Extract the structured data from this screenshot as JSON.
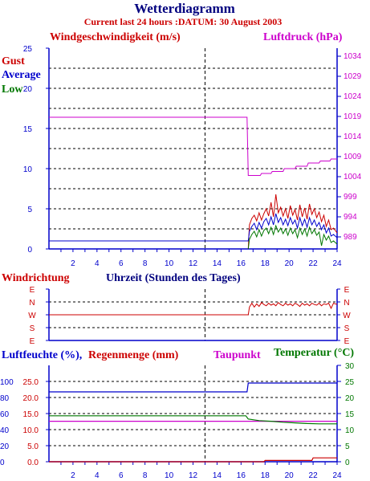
{
  "page": {
    "title": "Wetterdiagramm",
    "subtitle": "Current last 24 hours :DATUM: 30 August 2003"
  },
  "colors": {
    "title": "#00007f",
    "subtitle": "#cc0000",
    "gust": "#cc0000",
    "average": "#0000cc",
    "low": "#007700",
    "pressure": "#cc00cc",
    "axis": "#0000cc",
    "grid": "#000000",
    "humidity": "#0000cc",
    "rain": "#cc0000",
    "dewpoint": "#cc00cc",
    "temperature": "#007700"
  },
  "chart_data": [
    {
      "type": "line",
      "panel": "wind",
      "xlim": [
        0,
        24
      ],
      "x_ticks": [
        "2",
        "4",
        "6",
        "8",
        "10",
        "12",
        "14",
        "16",
        "18",
        "20",
        "22",
        "24"
      ],
      "left_axis": {
        "label": "Windgeschwindigkeit (m/s)",
        "ylim": [
          0,
          25
        ],
        "ticks": [
          "0",
          "5",
          "10",
          "15",
          "20",
          "25"
        ]
      },
      "right_axis": {
        "label": "Luftdruck (hPa)",
        "ylim": [
          986,
          1036
        ],
        "ticks": [
          "989",
          "994",
          "999",
          "1004",
          "1009",
          "1014",
          "1019",
          "1024",
          "1029",
          "1034"
        ]
      },
      "legend": [
        "Gust",
        "Average",
        "Low"
      ],
      "series": [
        {
          "name": "Gust",
          "axis": "left",
          "points": [
            [
              16.6,
              0
            ],
            [
              16.7,
              3
            ],
            [
              16.9,
              3.8
            ],
            [
              17.1,
              4.2
            ],
            [
              17.3,
              3.5
            ],
            [
              17.5,
              4.5
            ],
            [
              17.7,
              3.6
            ],
            [
              17.9,
              4.4
            ],
            [
              18.1,
              5.0
            ],
            [
              18.3,
              4.1
            ],
            [
              18.5,
              5.8
            ],
            [
              18.7,
              4.0
            ],
            [
              18.9,
              6.8
            ],
            [
              19.1,
              4.5
            ],
            [
              19.3,
              5.2
            ],
            [
              19.5,
              4.1
            ],
            [
              19.7,
              5.0
            ],
            [
              19.9,
              3.8
            ],
            [
              20.1,
              5.4
            ],
            [
              20.3,
              4.2
            ],
            [
              20.5,
              4.9
            ],
            [
              20.7,
              3.6
            ],
            [
              20.9,
              5.5
            ],
            [
              21.1,
              4.0
            ],
            [
              21.3,
              5.1
            ],
            [
              21.5,
              3.7
            ],
            [
              21.7,
              5.6
            ],
            [
              21.9,
              4.3
            ],
            [
              22.1,
              5.0
            ],
            [
              22.3,
              3.9
            ],
            [
              22.5,
              4.6
            ],
            [
              22.7,
              3.4
            ],
            [
              22.9,
              4.2
            ],
            [
              23.1,
              2.8
            ],
            [
              23.3,
              3.6
            ],
            [
              23.5,
              2.4
            ],
            [
              23.7,
              2.6
            ],
            [
              24,
              2.0
            ]
          ]
        },
        {
          "name": "Average",
          "axis": "left",
          "points": [
            [
              0,
              1
            ],
            [
              16.6,
              1
            ],
            [
              16.7,
              2.2
            ],
            [
              16.9,
              2.8
            ],
            [
              17.1,
              3.2
            ],
            [
              17.3,
              2.4
            ],
            [
              17.5,
              3.3
            ],
            [
              17.7,
              2.6
            ],
            [
              17.9,
              3.4
            ],
            [
              18.1,
              3.8
            ],
            [
              18.3,
              3.0
            ],
            [
              18.5,
              4.0
            ],
            [
              18.7,
              3.0
            ],
            [
              18.9,
              4.4
            ],
            [
              19.1,
              3.3
            ],
            [
              19.3,
              3.9
            ],
            [
              19.5,
              3.0
            ],
            [
              19.7,
              3.7
            ],
            [
              19.9,
              2.9
            ],
            [
              20.1,
              3.9
            ],
            [
              20.3,
              3.1
            ],
            [
              20.5,
              3.6
            ],
            [
              20.7,
              2.6
            ],
            [
              20.9,
              3.9
            ],
            [
              21.1,
              2.9
            ],
            [
              21.3,
              3.7
            ],
            [
              21.5,
              2.7
            ],
            [
              21.7,
              3.9
            ],
            [
              21.9,
              3.0
            ],
            [
              22.1,
              3.6
            ],
            [
              22.3,
              2.8
            ],
            [
              22.5,
              3.3
            ],
            [
              22.7,
              2.4
            ],
            [
              22.9,
              3.0
            ],
            [
              23.1,
              2.0
            ],
            [
              23.3,
              2.6
            ],
            [
              23.5,
              1.6
            ],
            [
              23.7,
              1.8
            ],
            [
              24,
              1.4
            ]
          ]
        },
        {
          "name": "Low",
          "axis": "left",
          "points": [
            [
              16.6,
              0
            ],
            [
              16.7,
              1.2
            ],
            [
              16.9,
              1.8
            ],
            [
              17.1,
              2.2
            ],
            [
              17.3,
              1.5
            ],
            [
              17.5,
              2.4
            ],
            [
              17.7,
              1.6
            ],
            [
              17.9,
              2.3
            ],
            [
              18.1,
              2.6
            ],
            [
              18.3,
              1.9
            ],
            [
              18.5,
              2.7
            ],
            [
              18.7,
              1.8
            ],
            [
              18.9,
              2.9
            ],
            [
              19.1,
              2.1
            ],
            [
              19.3,
              2.6
            ],
            [
              19.5,
              1.9
            ],
            [
              19.7,
              2.5
            ],
            [
              19.9,
              1.7
            ],
            [
              20.1,
              2.6
            ],
            [
              20.3,
              1.9
            ],
            [
              20.5,
              2.4
            ],
            [
              20.7,
              1.4
            ],
            [
              20.9,
              2.6
            ],
            [
              21.1,
              1.8
            ],
            [
              21.3,
              2.5
            ],
            [
              21.5,
              1.6
            ],
            [
              21.7,
              2.7
            ],
            [
              21.9,
              1.9
            ],
            [
              22.1,
              2.4
            ],
            [
              22.3,
              1.7
            ],
            [
              22.5,
              2.1
            ],
            [
              22.7,
              0.4
            ],
            [
              22.9,
              1.8
            ],
            [
              23.1,
              1.1
            ],
            [
              23.3,
              1.6
            ],
            [
              23.5,
              0.8
            ],
            [
              23.7,
              1.0
            ],
            [
              24,
              0.6
            ]
          ]
        },
        {
          "name": "Luftdruck",
          "axis": "right",
          "points": [
            [
              0,
              1018.8
            ],
            [
              16.5,
              1018.8
            ],
            [
              16.6,
              1004.3
            ],
            [
              17.6,
              1004.3
            ],
            [
              17.7,
              1004.8
            ],
            [
              18.5,
              1004.8
            ],
            [
              18.6,
              1005.3
            ],
            [
              19.5,
              1005.3
            ],
            [
              19.6,
              1006
            ],
            [
              20.5,
              1006
            ],
            [
              20.6,
              1006.6
            ],
            [
              21.5,
              1006.6
            ],
            [
              21.6,
              1007.4
            ],
            [
              22.5,
              1007.4
            ],
            [
              22.6,
              1007.9
            ],
            [
              23.4,
              1007.9
            ],
            [
              23.5,
              1008.4
            ],
            [
              24,
              1008.4
            ]
          ]
        }
      ]
    },
    {
      "type": "line",
      "panel": "direction",
      "label_left": "Windrichtung",
      "label_center": "Uhrzeit (Stunden des Tages)",
      "xlim": [
        0,
        24
      ],
      "y_ticks": [
        "E",
        "N",
        "W",
        "S",
        "E"
      ],
      "ylim": [
        0,
        4
      ],
      "series": [
        {
          "name": "Windrichtung",
          "points": [
            [
              0,
              2
            ],
            [
              16.6,
              2
            ],
            [
              16.7,
              2.6
            ],
            [
              16.9,
              2.9
            ],
            [
              17.1,
              2.6
            ],
            [
              17.3,
              2.85
            ],
            [
              17.5,
              2.65
            ],
            [
              17.7,
              2.95
            ],
            [
              17.9,
              2.8
            ],
            [
              18.1,
              2.7
            ],
            [
              18.3,
              2.9
            ],
            [
              18.5,
              2.75
            ],
            [
              18.7,
              2.85
            ],
            [
              18.9,
              2.7
            ],
            [
              19.1,
              2.95
            ],
            [
              19.3,
              2.8
            ],
            [
              19.5,
              2.7
            ],
            [
              19.7,
              2.9
            ],
            [
              19.9,
              2.75
            ],
            [
              20.1,
              2.85
            ],
            [
              20.3,
              2.7
            ],
            [
              20.5,
              2.9
            ],
            [
              20.7,
              2.8
            ],
            [
              20.9,
              2.65
            ],
            [
              21.1,
              2.9
            ],
            [
              21.3,
              2.75
            ],
            [
              21.5,
              2.85
            ],
            [
              21.7,
              2.7
            ],
            [
              21.9,
              2.9
            ],
            [
              22.1,
              2.8
            ],
            [
              22.3,
              2.75
            ],
            [
              22.5,
              2.9
            ],
            [
              22.7,
              2.7
            ],
            [
              22.9,
              2.85
            ],
            [
              23.1,
              2.8
            ],
            [
              23.3,
              2.9
            ],
            [
              23.5,
              2.5
            ],
            [
              23.7,
              2.9
            ],
            [
              24,
              2.8
            ]
          ]
        }
      ]
    },
    {
      "type": "line",
      "panel": "humidity",
      "xlim": [
        0,
        24
      ],
      "x_ticks": [
        "2",
        "4",
        "6",
        "8",
        "10",
        "12",
        "14",
        "16",
        "18",
        "20",
        "22",
        "24"
      ],
      "labels": {
        "humidity": "Luftfeuchte (%),",
        "rain": "Regenmenge (mm)",
        "dewpoint": "Taupunkt",
        "temperature": "Temperatur (",
        "temperature_unit": "°C)"
      },
      "left_axis_humidity": {
        "ylim": [
          0,
          120
        ],
        "ticks": [
          "0",
          "20",
          "40",
          "60",
          "80",
          "100"
        ]
      },
      "left_axis_rain": {
        "ylim": [
          0,
          30
        ],
        "ticks": [
          "0.0",
          "5.0",
          "10.0",
          "15.0",
          "20.0",
          "25.0"
        ]
      },
      "right_axis": {
        "ylim": [
          0,
          30
        ],
        "ticks": [
          "0",
          "5",
          "10",
          "15",
          "20",
          "25",
          "30"
        ]
      },
      "series": [
        {
          "name": "Luftfeuchte",
          "axis": "humidity",
          "points": [
            [
              0,
              87
            ],
            [
              16.5,
              87
            ],
            [
              16.6,
              98
            ],
            [
              24,
              98
            ]
          ]
        },
        {
          "name": "Regenmenge",
          "axis": "rain",
          "points": [
            [
              0,
              0
            ],
            [
              17.9,
              0
            ],
            [
              18.0,
              0.4
            ],
            [
              21.9,
              0.4
            ],
            [
              22.0,
              1.2
            ],
            [
              24,
              1.2
            ]
          ]
        },
        {
          "name": "Taupunkt",
          "axis": "temp",
          "points": [
            [
              0,
              12.6
            ],
            [
              16.5,
              12.6
            ],
            [
              16.6,
              12.6
            ],
            [
              24,
              12.6
            ]
          ]
        },
        {
          "name": "Temperatur",
          "axis": "temp",
          "points": [
            [
              0,
              14.3
            ],
            [
              16.4,
              14.3
            ],
            [
              16.6,
              13.3
            ],
            [
              17.5,
              12.8
            ],
            [
              18.5,
              12.6
            ],
            [
              19.5,
              12.3
            ],
            [
              20.5,
              12.1
            ],
            [
              21.5,
              11.9
            ],
            [
              22.5,
              11.8
            ],
            [
              24,
              11.8
            ]
          ]
        }
      ]
    }
  ]
}
